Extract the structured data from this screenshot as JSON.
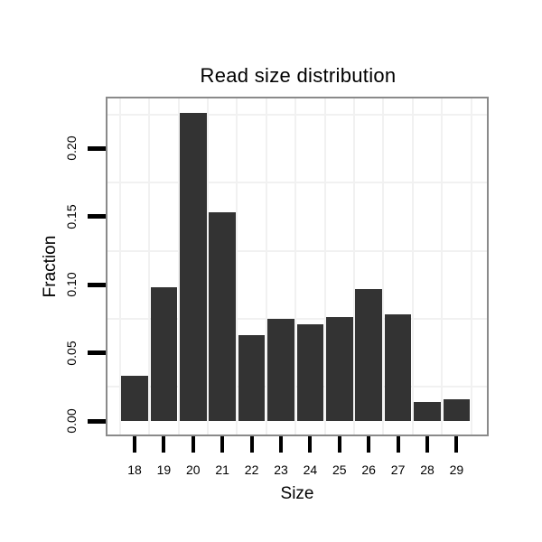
{
  "chart_data": {
    "type": "bar",
    "title": "Read size distribution",
    "xlabel": "Size",
    "ylabel": "Fraction",
    "categories": [
      "18",
      "19",
      "20",
      "21",
      "22",
      "23",
      "24",
      "25",
      "26",
      "27",
      "28",
      "29"
    ],
    "values": [
      0.033,
      0.098,
      0.226,
      0.153,
      0.063,
      0.075,
      0.071,
      0.076,
      0.097,
      0.078,
      0.014,
      0.016
    ],
    "y_tick_labels": [
      "0.00",
      "0.05",
      "0.10",
      "0.15",
      "0.20"
    ],
    "ylim": [
      -0.011,
      0.239
    ],
    "grid": "light minor gridlines on white panel",
    "legend_position": "none",
    "colors": {
      "bar_fill": "#333333",
      "panel_border": "#8a8a8a",
      "gridline": "#f1f1f1",
      "tick_mark": "#000000",
      "text": "#000000",
      "background": "#ffffff"
    }
  }
}
